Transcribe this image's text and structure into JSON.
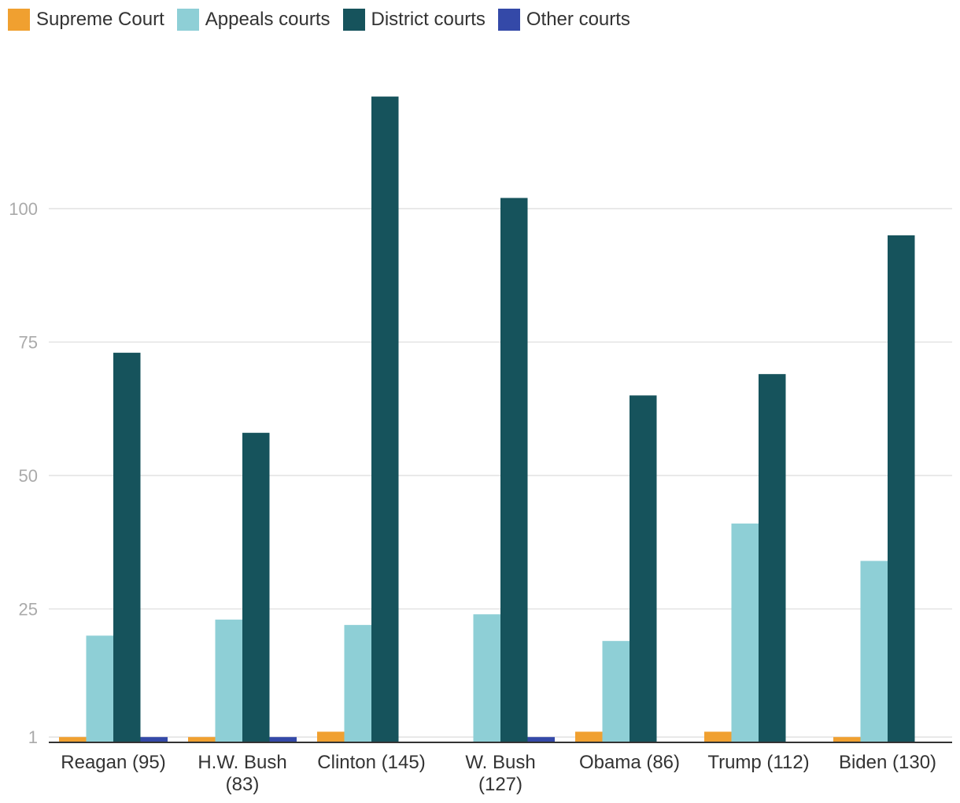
{
  "chart_data": {
    "type": "bar",
    "categories": [
      "Reagan (95)",
      "H.W. Bush (83)",
      "Clinton (145)",
      "W. Bush (127)",
      "Obama (86)",
      "Trump (112)",
      "Biden (130)"
    ],
    "category_lines": [
      [
        "Reagan (95)"
      ],
      [
        "H.W. Bush",
        "(83)"
      ],
      [
        "Clinton (145)"
      ],
      [
        "W. Bush",
        "(127)"
      ],
      [
        "Obama (86)"
      ],
      [
        "Trump (112)"
      ],
      [
        "Biden (130)"
      ]
    ],
    "series": [
      {
        "name": "Supreme Court",
        "color": "#f0a030",
        "values": [
          1,
          1,
          2,
          0,
          2,
          2,
          1
        ]
      },
      {
        "name": "Appeals courts",
        "color": "#8ecfd6",
        "values": [
          20,
          23,
          22,
          24,
          19,
          41,
          34
        ]
      },
      {
        "name": "District courts",
        "color": "#16535c",
        "values": [
          73,
          58,
          121,
          102,
          65,
          69,
          95
        ]
      },
      {
        "name": "Other courts",
        "color": "#3449a8",
        "values": [
          1,
          1,
          0,
          1,
          0,
          0,
          0
        ]
      }
    ],
    "yticks": [
      1,
      25,
      50,
      75,
      100
    ],
    "ylim": [
      0,
      125
    ],
    "grid": true,
    "legend_position": "top-left",
    "title": "",
    "xlabel": "",
    "ylabel": ""
  }
}
